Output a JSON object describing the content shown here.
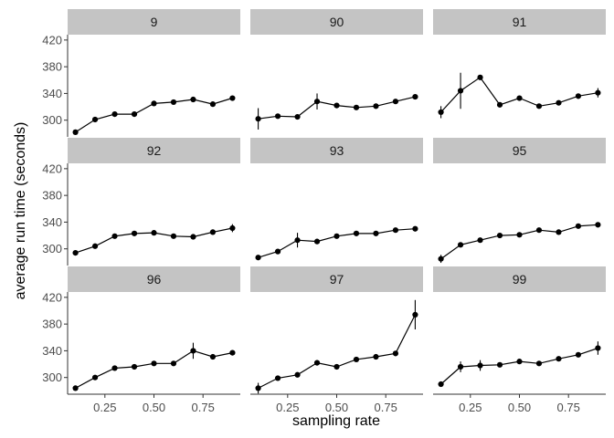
{
  "chart_data": {
    "type": "line",
    "xlabel": "sampling rate",
    "ylabel": "average run time (seconds)",
    "xlim": [
      0.06,
      0.94
    ],
    "ylim": [
      275,
      428
    ],
    "x_ticks": [
      0.25,
      0.5,
      0.75
    ],
    "x_tick_labels": [
      "0.25",
      "0.50",
      "0.75"
    ],
    "y_ticks": [
      300,
      340,
      380,
      420
    ],
    "y_tick_labels": [
      "300",
      "340",
      "380",
      "420"
    ],
    "x": [
      0.1,
      0.2,
      0.3,
      0.4,
      0.5,
      0.6,
      0.7,
      0.8,
      0.9
    ],
    "facets": [
      {
        "label": "9",
        "y": [
          282,
          301,
          309,
          309,
          325,
          327,
          331,
          324,
          333
        ],
        "err": [
          0,
          0,
          2,
          2,
          2,
          0,
          0,
          0,
          0
        ]
      },
      {
        "label": "90",
        "y": [
          302,
          306,
          305,
          328,
          322,
          319,
          321,
          328,
          335
        ],
        "err": [
          16,
          0,
          2,
          12,
          0,
          0,
          4,
          0,
          0
        ]
      },
      {
        "label": "91",
        "y": [
          312,
          344,
          364,
          323,
          333,
          321,
          326,
          336,
          341
        ],
        "err": [
          9,
          27,
          0,
          0,
          0,
          0,
          0,
          0,
          7
        ]
      },
      {
        "label": "92",
        "y": [
          294,
          304,
          319,
          323,
          324,
          319,
          318,
          325,
          331
        ],
        "err": [
          0,
          0,
          0,
          2,
          0,
          2,
          0,
          0,
          6
        ]
      },
      {
        "label": "93",
        "y": [
          287,
          296,
          313,
          311,
          319,
          323,
          323,
          328,
          330
        ],
        "err": [
          0,
          0,
          11,
          0,
          3,
          0,
          0,
          0,
          0
        ]
      },
      {
        "label": "95",
        "y": [
          285,
          306,
          313,
          320,
          321,
          328,
          325,
          334,
          336
        ],
        "err": [
          6,
          0,
          3,
          0,
          0,
          0,
          0,
          0,
          3
        ]
      },
      {
        "label": "96",
        "y": [
          284,
          300,
          314,
          316,
          321,
          321,
          340,
          331,
          337
        ],
        "err": [
          0,
          0,
          2,
          0,
          0,
          0,
          12,
          0,
          0
        ]
      },
      {
        "label": "97",
        "y": [
          284,
          299,
          304,
          322,
          316,
          327,
          331,
          336,
          394
        ],
        "err": [
          8,
          0,
          2,
          4,
          0,
          0,
          0,
          0,
          22
        ]
      },
      {
        "label": "99",
        "y": [
          290,
          316,
          318,
          319,
          324,
          321,
          328,
          334,
          344
        ],
        "err": [
          0,
          8,
          8,
          3,
          2,
          0,
          0,
          0,
          10
        ]
      }
    ],
    "colors": {
      "strip": "#c4c4c4",
      "line": "#000000",
      "axis": "#333333",
      "tick_text": "#4d4d4d"
    }
  }
}
